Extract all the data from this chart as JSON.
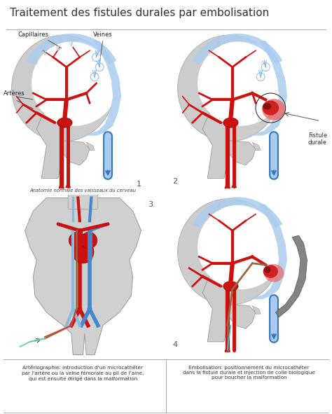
{
  "title": "Traitement des fistules durales par embolisation",
  "bg_color": "#ffffff",
  "artery_color": "#cc1111",
  "vein_color": "#4488cc",
  "vein_light": "#88bbdd",
  "blue_sinus": "#3377bb",
  "blue_sinus_light": "#aaccee",
  "catheter_color": "#88ccdd",
  "catheter2_color": "#bb8833",
  "fistule_red": "#cc2222",
  "fistule_dark": "#881111",
  "fistule_pink": "#ee6666",
  "heart_color": "#cc1111",
  "body_fill": "#d0d0d0",
  "head_fill": "#cccccc",
  "brain_fill": "#f0f0f0",
  "panel_bg": "#f0f0f0",
  "divider_color": "#aaaaaa",
  "text_color": "#333333",
  "gray_device": "#777777",
  "caption1": "Anatomie normale des vaisseaux du cerveau",
  "caption3": "Artériographie: introduction d'un microcathéter\npar l'artère ou la veine fémorale au pli de l'aine,\nqui est ensuite dirigé dans la malformation",
  "caption4": "Embolisation: positionnement du microcathéter\ndans la fistule durale et injection de colle biologique\npour boucher la malformation",
  "title_fontsize": 11,
  "label_fontsize": 6,
  "caption_fontsize": 5.2,
  "number_fontsize": 8
}
